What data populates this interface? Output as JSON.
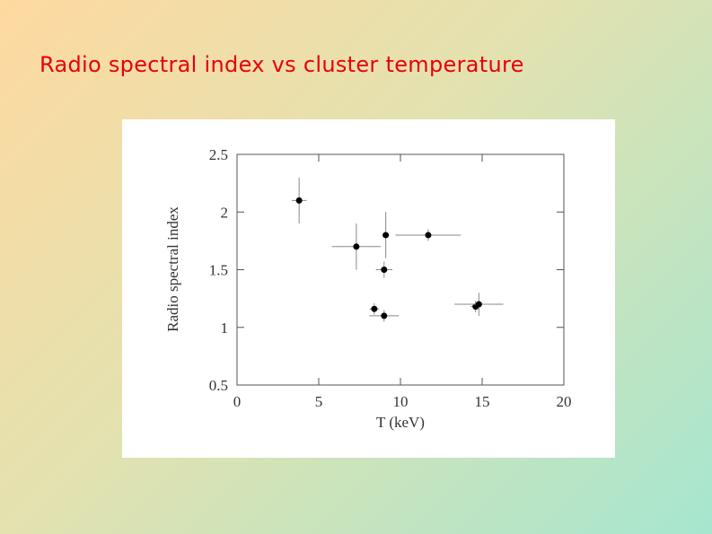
{
  "chart_data": {
    "type": "scatter",
    "title": "Radio spectral index vs cluster temperature",
    "x_label": "T (keV)",
    "y_label": "Radio spectral index",
    "xlim": [
      0,
      20
    ],
    "ylim": [
      0.5,
      2.5
    ],
    "xticks": [
      0,
      5,
      10,
      15,
      20
    ],
    "yticks": [
      0.5,
      1,
      1.5,
      2,
      2.5
    ],
    "series": [
      {
        "color": "#000000",
        "x": [
          3.8,
          7.3,
          9.1,
          9.0,
          11.7,
          8.4,
          9.0,
          14.6,
          14.8
        ],
        "values": [
          2.1,
          1.7,
          1.8,
          1.5,
          1.8,
          1.16,
          1.1,
          1.18,
          1.2
        ],
        "xerr": [
          0.45,
          1.5,
          0.2,
          0.5,
          2.0,
          0.3,
          0.9,
          0.3,
          1.5
        ],
        "yerr": [
          0.2,
          0.2,
          0.2,
          0.07,
          0.05,
          0.05,
          0.05,
          0.05,
          0.1
        ]
      }
    ]
  }
}
